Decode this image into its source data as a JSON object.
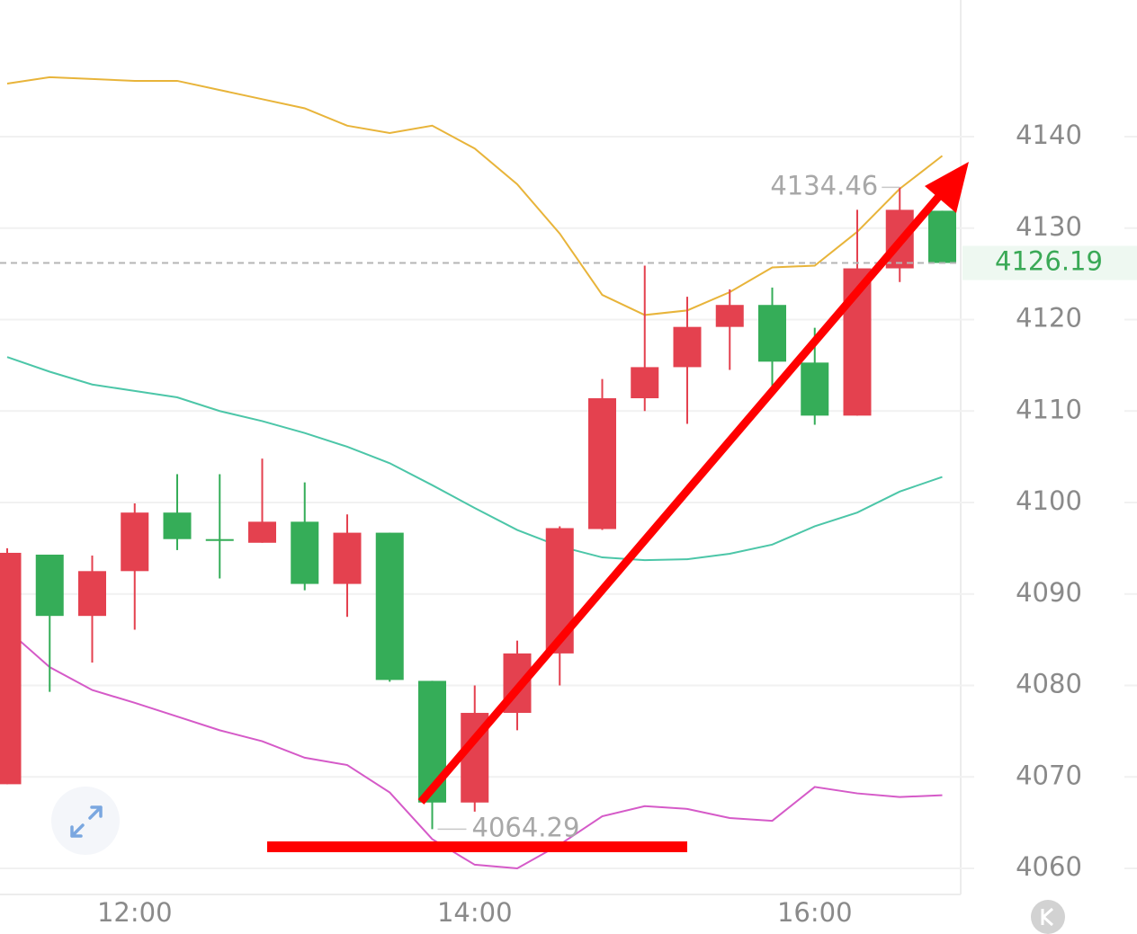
{
  "chart_data": {
    "type": "candlestick",
    "categories": [
      null,
      null,
      null,
      "12:00",
      null,
      null,
      null,
      null,
      null,
      null,
      null,
      "14:00",
      null,
      null,
      null,
      null,
      null,
      null,
      null,
      "16:00",
      null,
      null,
      null
    ],
    "open": [
      4069.2,
      4094.3,
      4087.6,
      4092.5,
      4098.9,
      4096.0,
      4095.6,
      4097.9,
      4091.1,
      4096.7,
      4080.5,
      4067.2,
      4077.0,
      4083.5,
      4097.1,
      4111.4,
      4114.8,
      4119.2,
      4121.6,
      4115.3,
      4109.5,
      4125.6,
      4131.9
    ],
    "high": [
      4095.0,
      4094.3,
      4094.2,
      4099.9,
      4103.1,
      4103.1,
      4104.8,
      4102.2,
      4098.7,
      4096.7,
      4080.5,
      4080.0,
      4084.9,
      4097.4,
      4113.5,
      4125.9,
      4122.5,
      4123.3,
      4123.5,
      4119.1,
      4132.0,
      4134.46,
      4131.9
    ],
    "low": [
      4069.2,
      4079.3,
      4082.5,
      4086.1,
      4094.8,
      4091.7,
      4095.6,
      4090.4,
      4087.5,
      4080.4,
      4064.29,
      4066.2,
      4075.1,
      4080.0,
      4097.0,
      4110.0,
      4108.6,
      4114.5,
      4112.5,
      4108.5,
      4109.5,
      4124.1,
      4126.19
    ],
    "close": [
      4094.5,
      4087.6,
      4092.5,
      4098.9,
      4096.0,
      4095.8,
      4097.9,
      4091.1,
      4096.7,
      4080.6,
      4067.2,
      4077.0,
      4083.5,
      4097.2,
      4111.4,
      4114.8,
      4119.2,
      4121.6,
      4115.4,
      4109.5,
      4125.6,
      4132.0,
      4126.19
    ],
    "up_color": "#e4414f",
    "down_color": "#35ad58",
    "lines": [
      {
        "color": "#e8b43a",
        "values": [
          4145.8,
          4146.5,
          4146.3,
          4146.1,
          4146.1,
          4145.1,
          4144.1,
          4143.1,
          4141.2,
          4140.4,
          4141.2,
          4138.7,
          4134.8,
          4129.4,
          4122.7,
          4120.5,
          4121.0,
          4123.0,
          4125.7,
          4125.9,
          4129.6,
          4134.3,
          4137.9
        ]
      },
      {
        "color": "#4cc6a8",
        "values": [
          4115.9,
          4114.3,
          4112.9,
          4112.2,
          4111.5,
          4110.0,
          4108.9,
          4107.6,
          4106.1,
          4104.3,
          4101.9,
          4099.4,
          4097.0,
          4095.2,
          4094.0,
          4093.7,
          4093.8,
          4094.4,
          4095.4,
          4097.4,
          4098.9,
          4101.2,
          4102.8
        ]
      },
      {
        "color": "#d55ac8",
        "values": [
          4086.1,
          4082.0,
          4079.5,
          4078.1,
          4076.6,
          4075.1,
          4073.9,
          4072.1,
          4071.3,
          4068.3,
          4063.2,
          4060.4,
          4060.0,
          4062.6,
          4065.7,
          4066.8,
          4066.5,
          4065.5,
          4065.2,
          4068.9,
          4068.2,
          4067.8,
          4068.0
        ]
      }
    ],
    "ylim": [
      4057.15,
      4154.94
    ],
    "yticks": [
      4060,
      4070,
      4080,
      4090,
      4100,
      4110,
      4120,
      4130,
      4140
    ],
    "grid": true
  }
}
